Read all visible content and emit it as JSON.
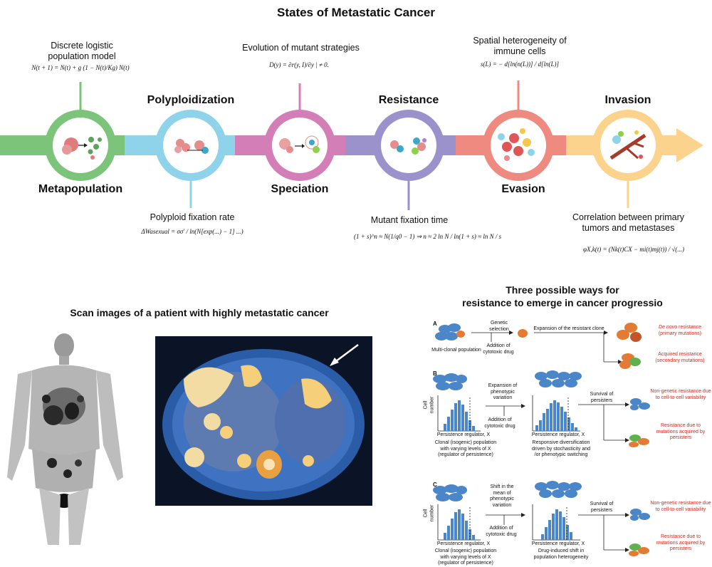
{
  "title": "States of Metastatic Cancer",
  "timeline": {
    "colors": [
      "#7cc47a",
      "#8fd3ea",
      "#d47eb8",
      "#9b92cc",
      "#ef8a80",
      "#fbd38d"
    ],
    "stages": [
      {
        "name": "Metapopulation",
        "annotation": "Discrete logistic population model",
        "formula": "N(t + 1) = N(t) + g (1 − N(t)/Kg) N(t)"
      },
      {
        "name": "Polyploidization",
        "annotation": "Polyploid fixation rate",
        "formula": "ΔWasexual = σσ′ / ln(N[exp(...) − 1] ...)"
      },
      {
        "name": "Speciation",
        "annotation": "Evolution of mutant strategies",
        "formula": "D(y) = ∂r(y, I)/∂y | ≠ 0."
      },
      {
        "name": "Resistance",
        "annotation": "Mutant fixation time",
        "formula": "(1 + s)^n ≈ N(1/q0 − 1) ⇒ n ≈ 2 ln N / ln(1 + s) ≈ ln N / s"
      },
      {
        "name": "Evasion",
        "annotation": "Spatial heterogeneity of immune cells",
        "formula": "s(L) = − d[ln(n(L))] / d[ln(L)]"
      },
      {
        "name": "Invasion",
        "annotation": "Correlation between primary tumors and metastases",
        "formula": "φX,k(t) = (Nk(t)CX − mi(t)mj(t)) / √(...)"
      }
    ]
  },
  "scan": {
    "title": "Scan images of a patient with highly metastatic cancer"
  },
  "resistance": {
    "title_line1": "Three possible ways for",
    "title_line2": "resistance to emerge in cancer progressio",
    "panel_a": {
      "letter": "A",
      "population": "Multi-clonal population",
      "step1": "Genetic selection",
      "step2": "Addition of cytotoxic drug",
      "expansion": "Expansion of the resistant clone",
      "out1_italic": "De novo",
      "out1_rest": " resistance",
      "out1_sub": "(primary mutations)",
      "out2": "Acquired resistance",
      "out2_sub": "(secondary mutations)"
    },
    "panel_b": {
      "letter": "B",
      "step1": "Expansion of phenotypic variation",
      "step2": "Addition of cytotoxic drug",
      "ylabel": "Cell number",
      "xlabel": "Persistence regulator, X",
      "left_caption": "Clonal (isogenic) population with varying levels of X (regulator of persistence)",
      "right_caption": "Responsive diversification driven by stochasticity and /or phenotypic switching",
      "survival": "Survival of persisters",
      "out1": "Non-genetic resistance due to cell-to-cell variability",
      "out2": "Resistance due to mutations acquired by persisters"
    },
    "panel_c": {
      "letter": "C",
      "step1": "Shift in the mean of phenotypic variation",
      "step2": "Addition of cytotoxic drug",
      "ylabel": "Cell number",
      "xlabel": "Persistence regulator, X",
      "left_caption": "Clonal (isogenic) population with varying levels of X (regulator of persistence)",
      "right_caption": "Drug-induced shift in population heterogeneity",
      "survival": "Survival of persisters",
      "out1": "Non-genetic resistance due to cell-to-cell variability",
      "out2": "Resistance due to mutations acquired by persisters"
    }
  }
}
